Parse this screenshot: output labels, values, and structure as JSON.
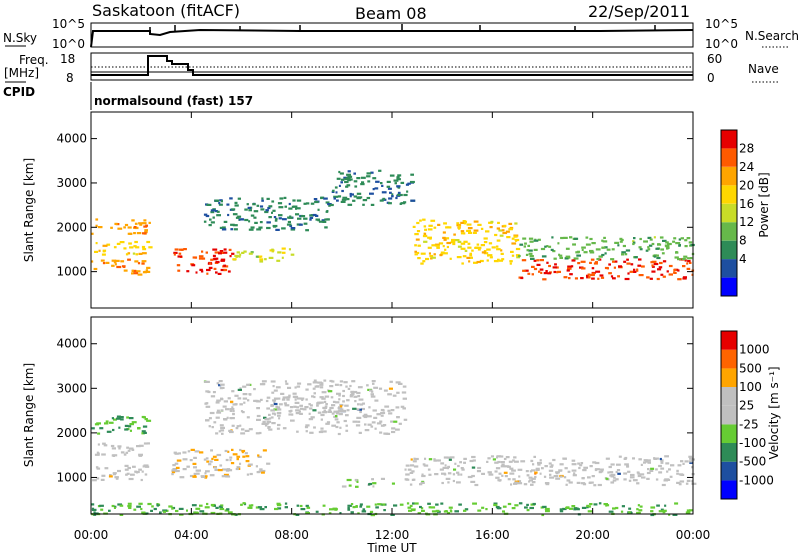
{
  "header": {
    "station": "Saskatoon (fitACF)",
    "beam": "Beam 08",
    "date": "22/Sep/2011"
  },
  "summary_panels": {
    "nsky": {
      "left_label": "N.Sky",
      "left_ticks": [
        "10^5",
        "10^0"
      ],
      "right_label": "N.Search",
      "right_ticks": [
        "10^5",
        "10^0"
      ]
    },
    "freq": {
      "left_label_1": "Freq.",
      "left_label_2": "[MHz]",
      "left_ticks": [
        "18",
        "8"
      ],
      "right_label": "Nave",
      "right_ticks": [
        "60",
        "0"
      ]
    },
    "cpid": {
      "label": "CPID",
      "value": "normalsound (fast) 157"
    }
  },
  "power_panel": {
    "ylabel": "Slant Range [km]",
    "yticks": [
      "4000",
      "3000",
      "2000",
      "1000"
    ],
    "colorbar_label": "Power [dB]",
    "colorbar_ticks": [
      "28",
      "24",
      "20",
      "16",
      "12",
      "8",
      "4"
    ],
    "colors": [
      "#0000ff",
      "#1e4fa0",
      "#2e8b57",
      "#66b84a",
      "#c8dc28",
      "#ffd700",
      "#ffa500",
      "#ff5a00",
      "#e60000"
    ]
  },
  "velocity_panel": {
    "ylabel": "Slant Range [km]",
    "yticks": [
      "4000",
      "3000",
      "2000",
      "1000"
    ],
    "colorbar_label": "Velocity [m s⁻¹]",
    "colorbar_ticks": [
      "1000",
      "500",
      "100",
      "25",
      "-25",
      "-100",
      "-500",
      "-1000"
    ],
    "colors": [
      "#0000ff",
      "#1e4fa0",
      "#2e8b57",
      "#66cc33",
      "#c0c0c0",
      "#c0c0c0",
      "#ffa500",
      "#ff6400",
      "#e60000"
    ]
  },
  "x_axis": {
    "label": "Time UT",
    "ticks": [
      "00:00",
      "04:00",
      "08:00",
      "12:00",
      "16:00",
      "20:00",
      "00:00"
    ]
  },
  "chart_data": [
    {
      "type": "heatmap",
      "title": "Power",
      "xlabel": "Time UT",
      "ylabel": "Slant Range [km]",
      "xlim": [
        0,
        24
      ],
      "ylim": [
        180,
        4600
      ],
      "zlabel": "Power [dB]",
      "zlim": [
        0,
        32
      ],
      "bands": [
        {
          "x": [
            0.0,
            2.3
          ],
          "y": [
            1850,
            2200
          ],
          "v": 24
        },
        {
          "x": [
            0.0,
            2.3
          ],
          "y": [
            1400,
            1700
          ],
          "v": 20
        },
        {
          "x": [
            0.0,
            2.3
          ],
          "y": [
            950,
            1300
          ],
          "v": 24
        },
        {
          "x": [
            3.2,
            5.6
          ],
          "y": [
            950,
            1550
          ],
          "v": 28
        },
        {
          "x": [
            5.6,
            8.0
          ],
          "y": [
            1250,
            1550
          ],
          "v": 16
        },
        {
          "x": [
            4.5,
            9.5
          ],
          "y": [
            1950,
            2700
          ],
          "v": 8
        },
        {
          "x": [
            9.5,
            12.8
          ],
          "y": [
            2500,
            3300
          ],
          "v": 8
        },
        {
          "x": [
            12.8,
            17.0
          ],
          "y": [
            1200,
            2200
          ],
          "v": 20
        },
        {
          "x": [
            17.0,
            24.0
          ],
          "y": [
            850,
            1300
          ],
          "v": 28
        },
        {
          "x": [
            17.0,
            24.0
          ],
          "y": [
            1300,
            1800
          ],
          "v": 12
        }
      ]
    },
    {
      "type": "heatmap",
      "title": "Velocity",
      "xlabel": "Time UT",
      "ylabel": "Slant Range [km]",
      "xlim": [
        0,
        24
      ],
      "ylim": [
        180,
        4600
      ],
      "zlabel": "Velocity [m s-1]",
      "zlim": [
        -1000,
        1000
      ],
      "bands": [
        {
          "x": [
            0.0,
            2.3
          ],
          "y": [
            2000,
            2400
          ],
          "v": -300
        },
        {
          "x": [
            0.0,
            2.3
          ],
          "y": [
            1500,
            1800
          ],
          "v": 60
        },
        {
          "x": [
            0.0,
            2.3
          ],
          "y": [
            950,
            1300
          ],
          "v": 0
        },
        {
          "x": [
            3.2,
            7.0
          ],
          "y": [
            1000,
            1650
          ],
          "v": 300
        },
        {
          "x": [
            4.5,
            12.5
          ],
          "y": [
            2000,
            3200
          ],
          "v": 0
        },
        {
          "x": [
            12.5,
            24.0
          ],
          "y": [
            850,
            1500
          ],
          "v": 0
        },
        {
          "x": [
            10.0,
            12.0
          ],
          "y": [
            800,
            1000
          ],
          "v": -200
        },
        {
          "x": [
            0.0,
            24.0
          ],
          "y": [
            180,
            450
          ],
          "v": -300
        }
      ]
    }
  ]
}
